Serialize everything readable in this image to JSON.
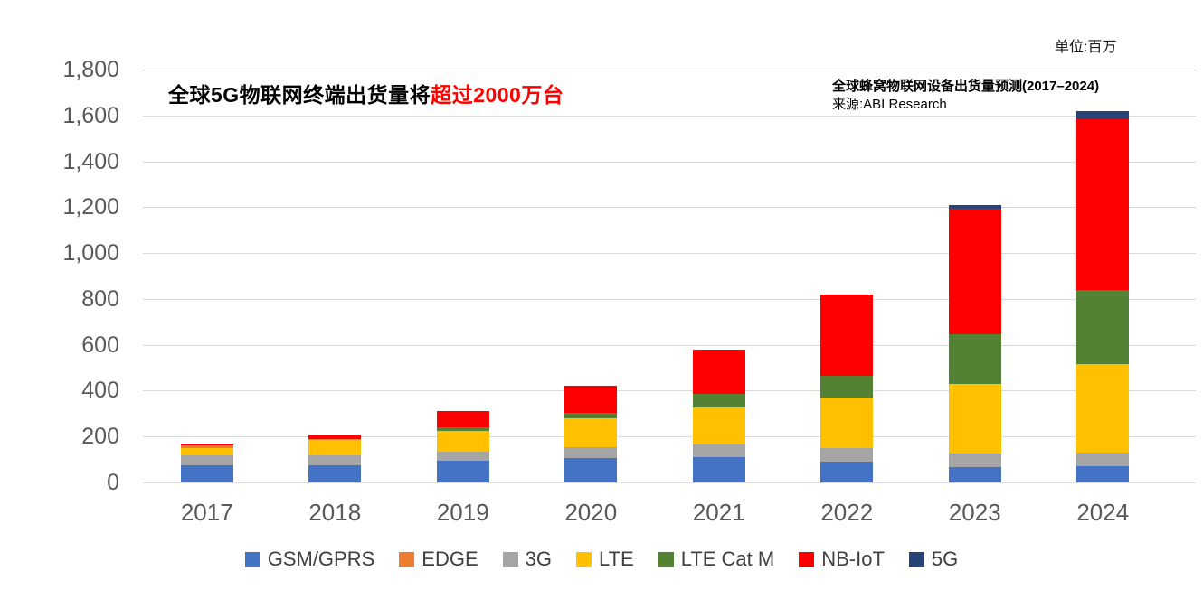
{
  "unit_label": "单位:百万",
  "title": {
    "black_part": "全球5G物联网终端出货量将",
    "red_part": "超过2000万台"
  },
  "note": {
    "line1": "全球蜂窝物联网设备出货量预测(2017–2024)",
    "line2": "来源:ABI Research"
  },
  "colors": {
    "gridline": "#D9D9D9",
    "axis_label": "#595959",
    "legend_text": "#404040",
    "title_red": "#FF0000"
  },
  "chart_data": {
    "type": "bar",
    "stacked": true,
    "title": "全球蜂窝物联网设备出货量预测(2017–2024)",
    "source": "来源:ABI Research",
    "unit": "单位:百万",
    "xlabel": "",
    "ylabel": "",
    "categories": [
      "2017",
      "2018",
      "2019",
      "2020",
      "2021",
      "2022",
      "2023",
      "2024"
    ],
    "series": [
      {
        "name": "GSM/GPRS",
        "color": "#4472C4",
        "values": [
          75,
          75,
          95,
          105,
          110,
          90,
          65,
          70
        ]
      },
      {
        "name": "EDGE",
        "color": "#ED7D31",
        "values": [
          11,
          5,
          0,
          0,
          0,
          0,
          0,
          0
        ]
      },
      {
        "name": "3G",
        "color": "#A5A5A5",
        "values": [
          43,
          45,
          40,
          50,
          55,
          60,
          60,
          60
        ]
      },
      {
        "name": "LTE",
        "color": "#FFC000",
        "values": [
          31,
          65,
          90,
          125,
          160,
          220,
          305,
          385
        ]
      },
      {
        "name": "LTE Cat M",
        "color": "#548235",
        "values": [
          0,
          0,
          15,
          25,
          60,
          95,
          215,
          325
        ]
      },
      {
        "name": "NB-IoT",
        "color": "#FF0000",
        "values": [
          7,
          20,
          70,
          115,
          195,
          355,
          550,
          745
        ]
      },
      {
        "name": "5G",
        "color": "#264478",
        "values": [
          0,
          0,
          0,
          0,
          0,
          0,
          15,
          35
        ]
      }
    ],
    "totals": [
      167,
      210,
      310,
      420,
      580,
      820,
      1210,
      1620
    ],
    "stack_order": [
      "GSM/GPRS",
      "3G",
      "LTE",
      "EDGE",
      "LTE Cat M",
      "NB-IoT",
      "5G"
    ],
    "ylim": [
      0,
      1800
    ],
    "ytick_step": 200,
    "grid": true,
    "legend_position": "bottom"
  }
}
